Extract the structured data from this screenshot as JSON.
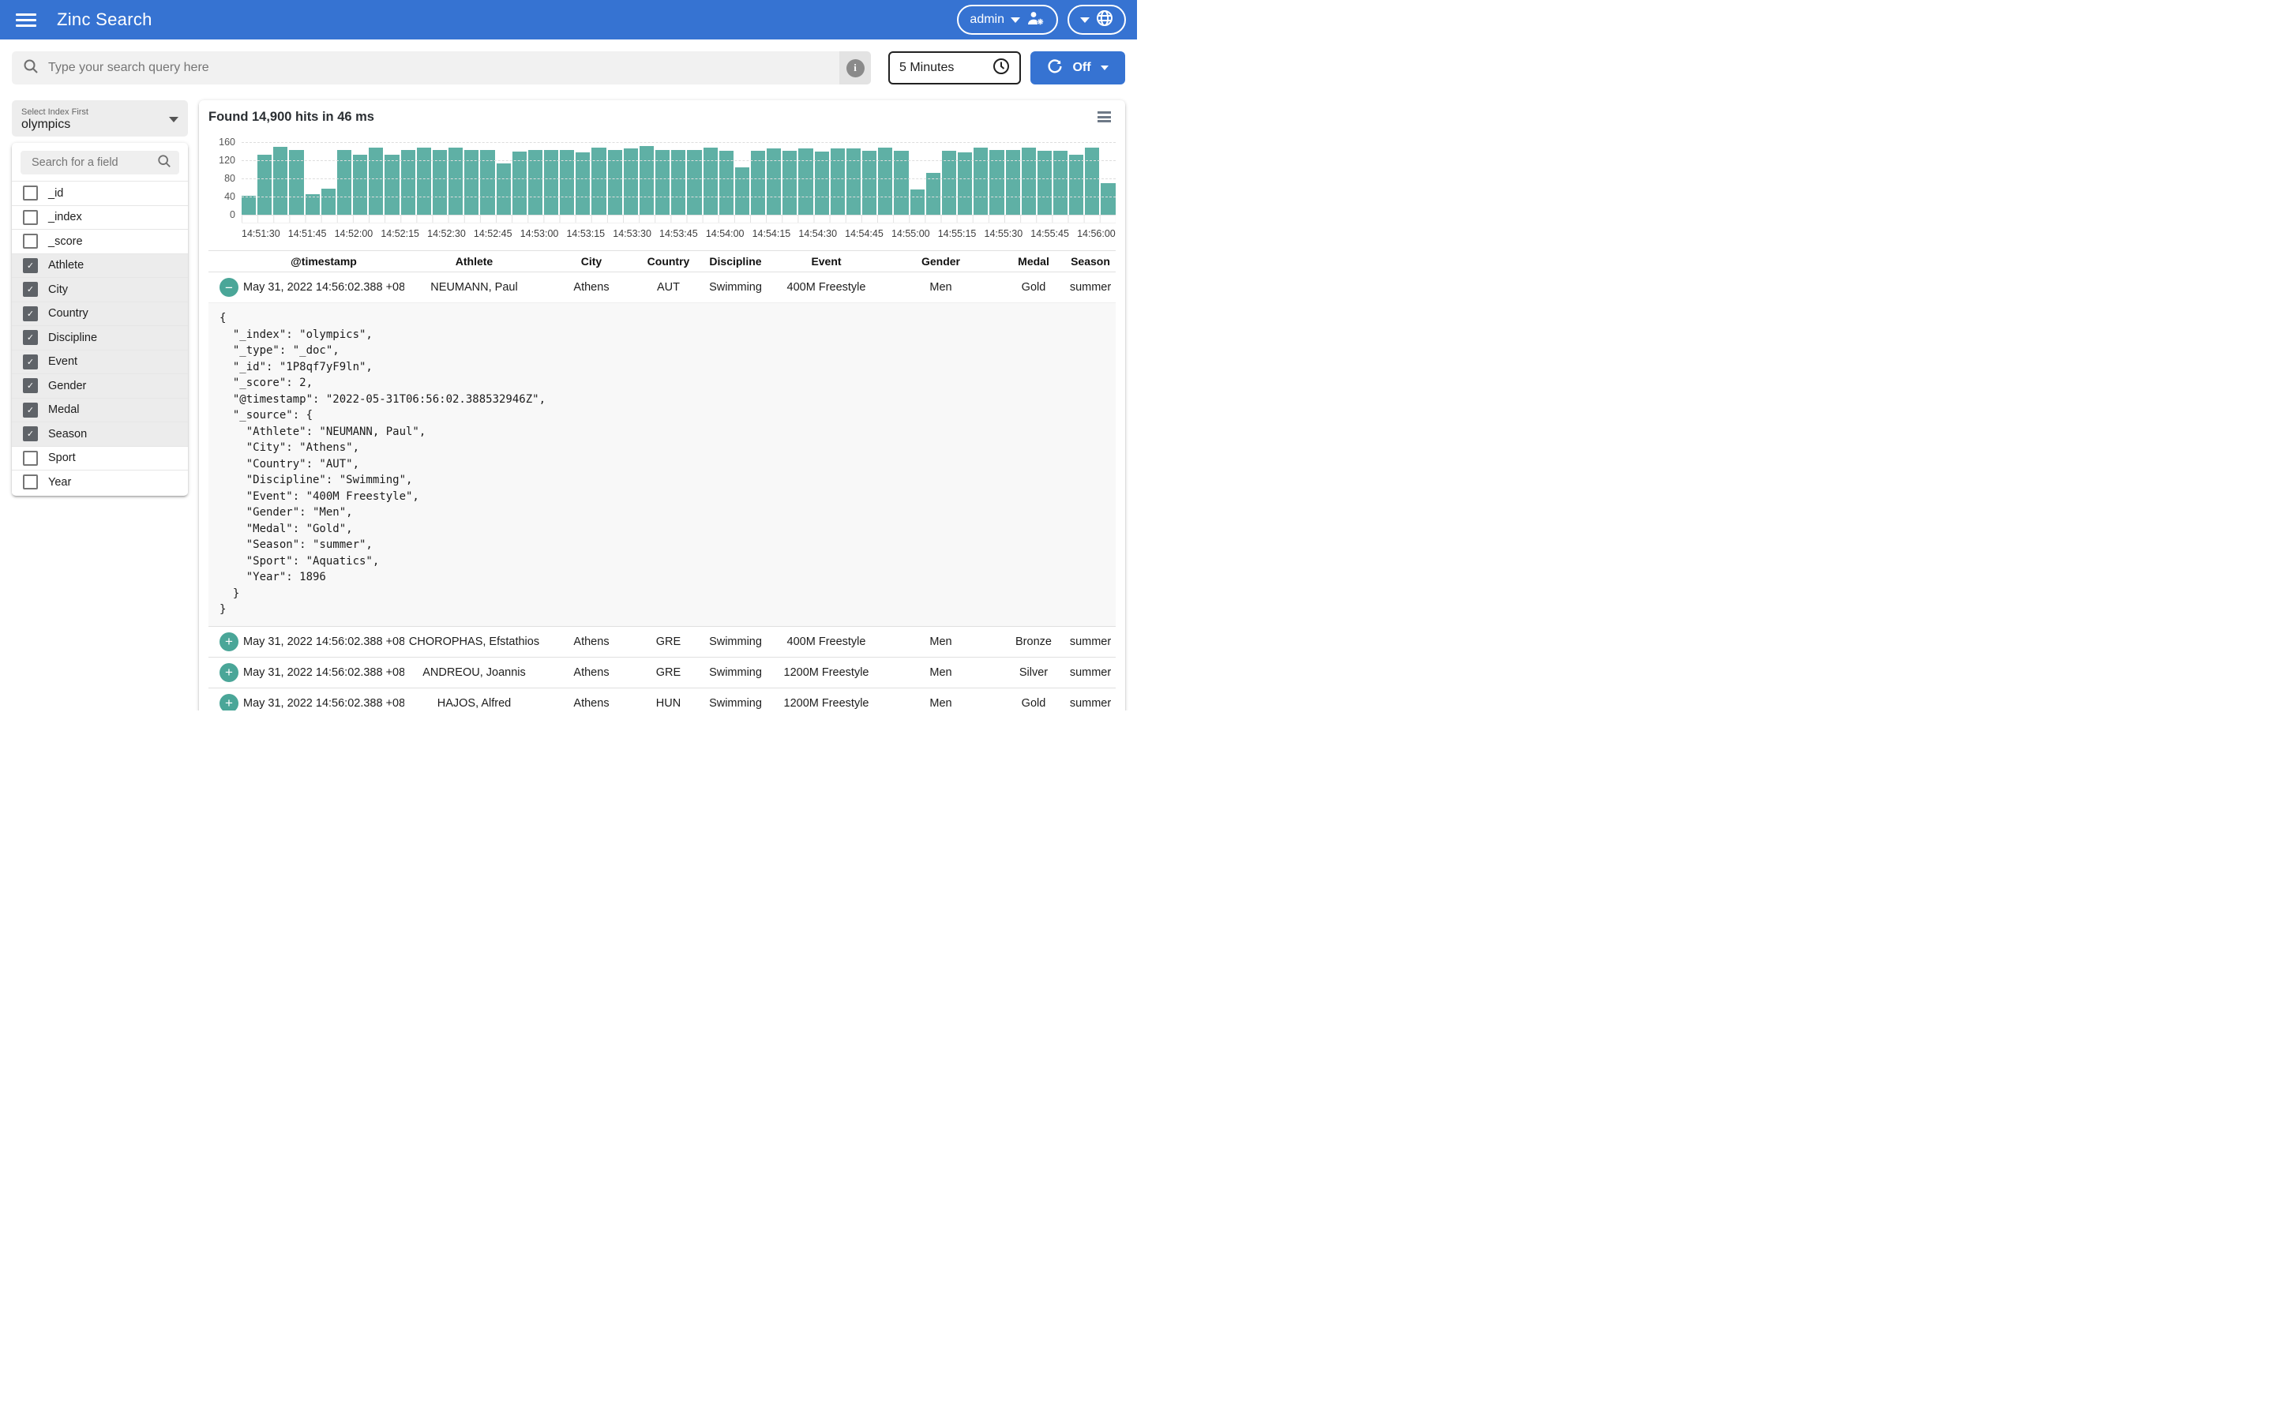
{
  "header": {
    "title": "Zinc Search",
    "user_menu_label": "admin",
    "colors": {
      "bar_blue": "#3673d2"
    }
  },
  "search": {
    "placeholder": "Type your search query here",
    "time_range_value": "5 Minutes",
    "auto_refresh_value": "Off"
  },
  "sidebar": {
    "index_select": {
      "label": "Select Index First",
      "value": "olympics"
    },
    "field_search_placeholder": "Search for a field",
    "fields": [
      {
        "name": "_id",
        "checked": false
      },
      {
        "name": "_index",
        "checked": false
      },
      {
        "name": "_score",
        "checked": false
      },
      {
        "name": "Athlete",
        "checked": true
      },
      {
        "name": "City",
        "checked": true
      },
      {
        "name": "Country",
        "checked": true
      },
      {
        "name": "Discipline",
        "checked": true
      },
      {
        "name": "Event",
        "checked": true
      },
      {
        "name": "Gender",
        "checked": true
      },
      {
        "name": "Medal",
        "checked": true
      },
      {
        "name": "Season",
        "checked": true
      },
      {
        "name": "Sport",
        "checked": false
      },
      {
        "name": "Year",
        "checked": false
      }
    ]
  },
  "results": {
    "summary": "Found 14,900 hits in 46 ms"
  },
  "chart_data": {
    "type": "bar",
    "title": "",
    "xlabel": "",
    "ylabel": "",
    "ylim": [
      0,
      160
    ],
    "y_ticks": [
      0,
      40,
      80,
      120,
      160
    ],
    "grid": "dashed horizontal",
    "legend": "none",
    "bar_color": "#5fb0a5",
    "x_tick_labels": [
      "14:51:30",
      "14:51:45",
      "14:52:00",
      "14:52:15",
      "14:52:30",
      "14:52:45",
      "14:53:00",
      "14:53:15",
      "14:53:30",
      "14:53:45",
      "14:54:00",
      "14:54:15",
      "14:54:30",
      "14:54:45",
      "14:55:00",
      "14:55:15",
      "14:55:30",
      "14:55:45",
      "14:56:00"
    ],
    "values": [
      42,
      133,
      149,
      143,
      46,
      57,
      143,
      133,
      148,
      132,
      143,
      148,
      143,
      148,
      143,
      143,
      113,
      139,
      143,
      143,
      143,
      138,
      147,
      142,
      146,
      152,
      142,
      142,
      142,
      147,
      141,
      105,
      141,
      146,
      141,
      146,
      140,
      146,
      146,
      141,
      147,
      141,
      55,
      93,
      141,
      137,
      148,
      142,
      142,
      148,
      141,
      141,
      133,
      147,
      70
    ]
  },
  "table": {
    "columns": [
      "@timestamp",
      "Athlete",
      "City",
      "Country",
      "Discipline",
      "Event",
      "Gender",
      "Medal",
      "Season"
    ],
    "rows": [
      {
        "expanded": true,
        "partial": false,
        "timestamp": "May 31, 2022 14:56:02.388 +08:00",
        "athlete": "NEUMANN, Paul",
        "city": "Athens",
        "country": "AUT",
        "discipline": "Swimming",
        "event": "400M Freestyle",
        "gender": "Men",
        "medal": "Gold",
        "season": "summer"
      },
      {
        "expanded": false,
        "partial": false,
        "timestamp": "May 31, 2022 14:56:02.388 +08:00",
        "athlete": "CHOROPHAS, Efstathios",
        "city": "Athens",
        "country": "GRE",
        "discipline": "Swimming",
        "event": "400M Freestyle",
        "gender": "Men",
        "medal": "Bronze",
        "season": "summer"
      },
      {
        "expanded": false,
        "partial": false,
        "timestamp": "May 31, 2022 14:56:02.388 +08:00",
        "athlete": "ANDREOU, Joannis",
        "city": "Athens",
        "country": "GRE",
        "discipline": "Swimming",
        "event": "1200M Freestyle",
        "gender": "Men",
        "medal": "Silver",
        "season": "summer"
      },
      {
        "expanded": false,
        "partial": false,
        "timestamp": "May 31, 2022 14:56:02.388 +08:00",
        "athlete": "HAJOS, Alfred",
        "city": "Athens",
        "country": "HUN",
        "discipline": "Swimming",
        "event": "1200M Freestyle",
        "gender": "Men",
        "medal": "Gold",
        "season": "summer"
      },
      {
        "expanded": false,
        "partial": true,
        "timestamp": "",
        "athlete": "",
        "city": "",
        "country": "",
        "discipline": "",
        "event": "",
        "gender": "",
        "medal": "",
        "season": ""
      }
    ],
    "expanded_document_json": "{\n  \"_index\": \"olympics\",\n  \"_type\": \"_doc\",\n  \"_id\": \"1P8qf7yF9ln\",\n  \"_score\": 2,\n  \"@timestamp\": \"2022-05-31T06:56:02.388532946Z\",\n  \"_source\": {\n    \"Athlete\": \"NEUMANN, Paul\",\n    \"City\": \"Athens\",\n    \"Country\": \"AUT\",\n    \"Discipline\": \"Swimming\",\n    \"Event\": \"400M Freestyle\",\n    \"Gender\": \"Men\",\n    \"Medal\": \"Gold\",\n    \"Season\": \"summer\",\n    \"Sport\": \"Aquatics\",\n    \"Year\": 1896\n  }\n}"
  }
}
